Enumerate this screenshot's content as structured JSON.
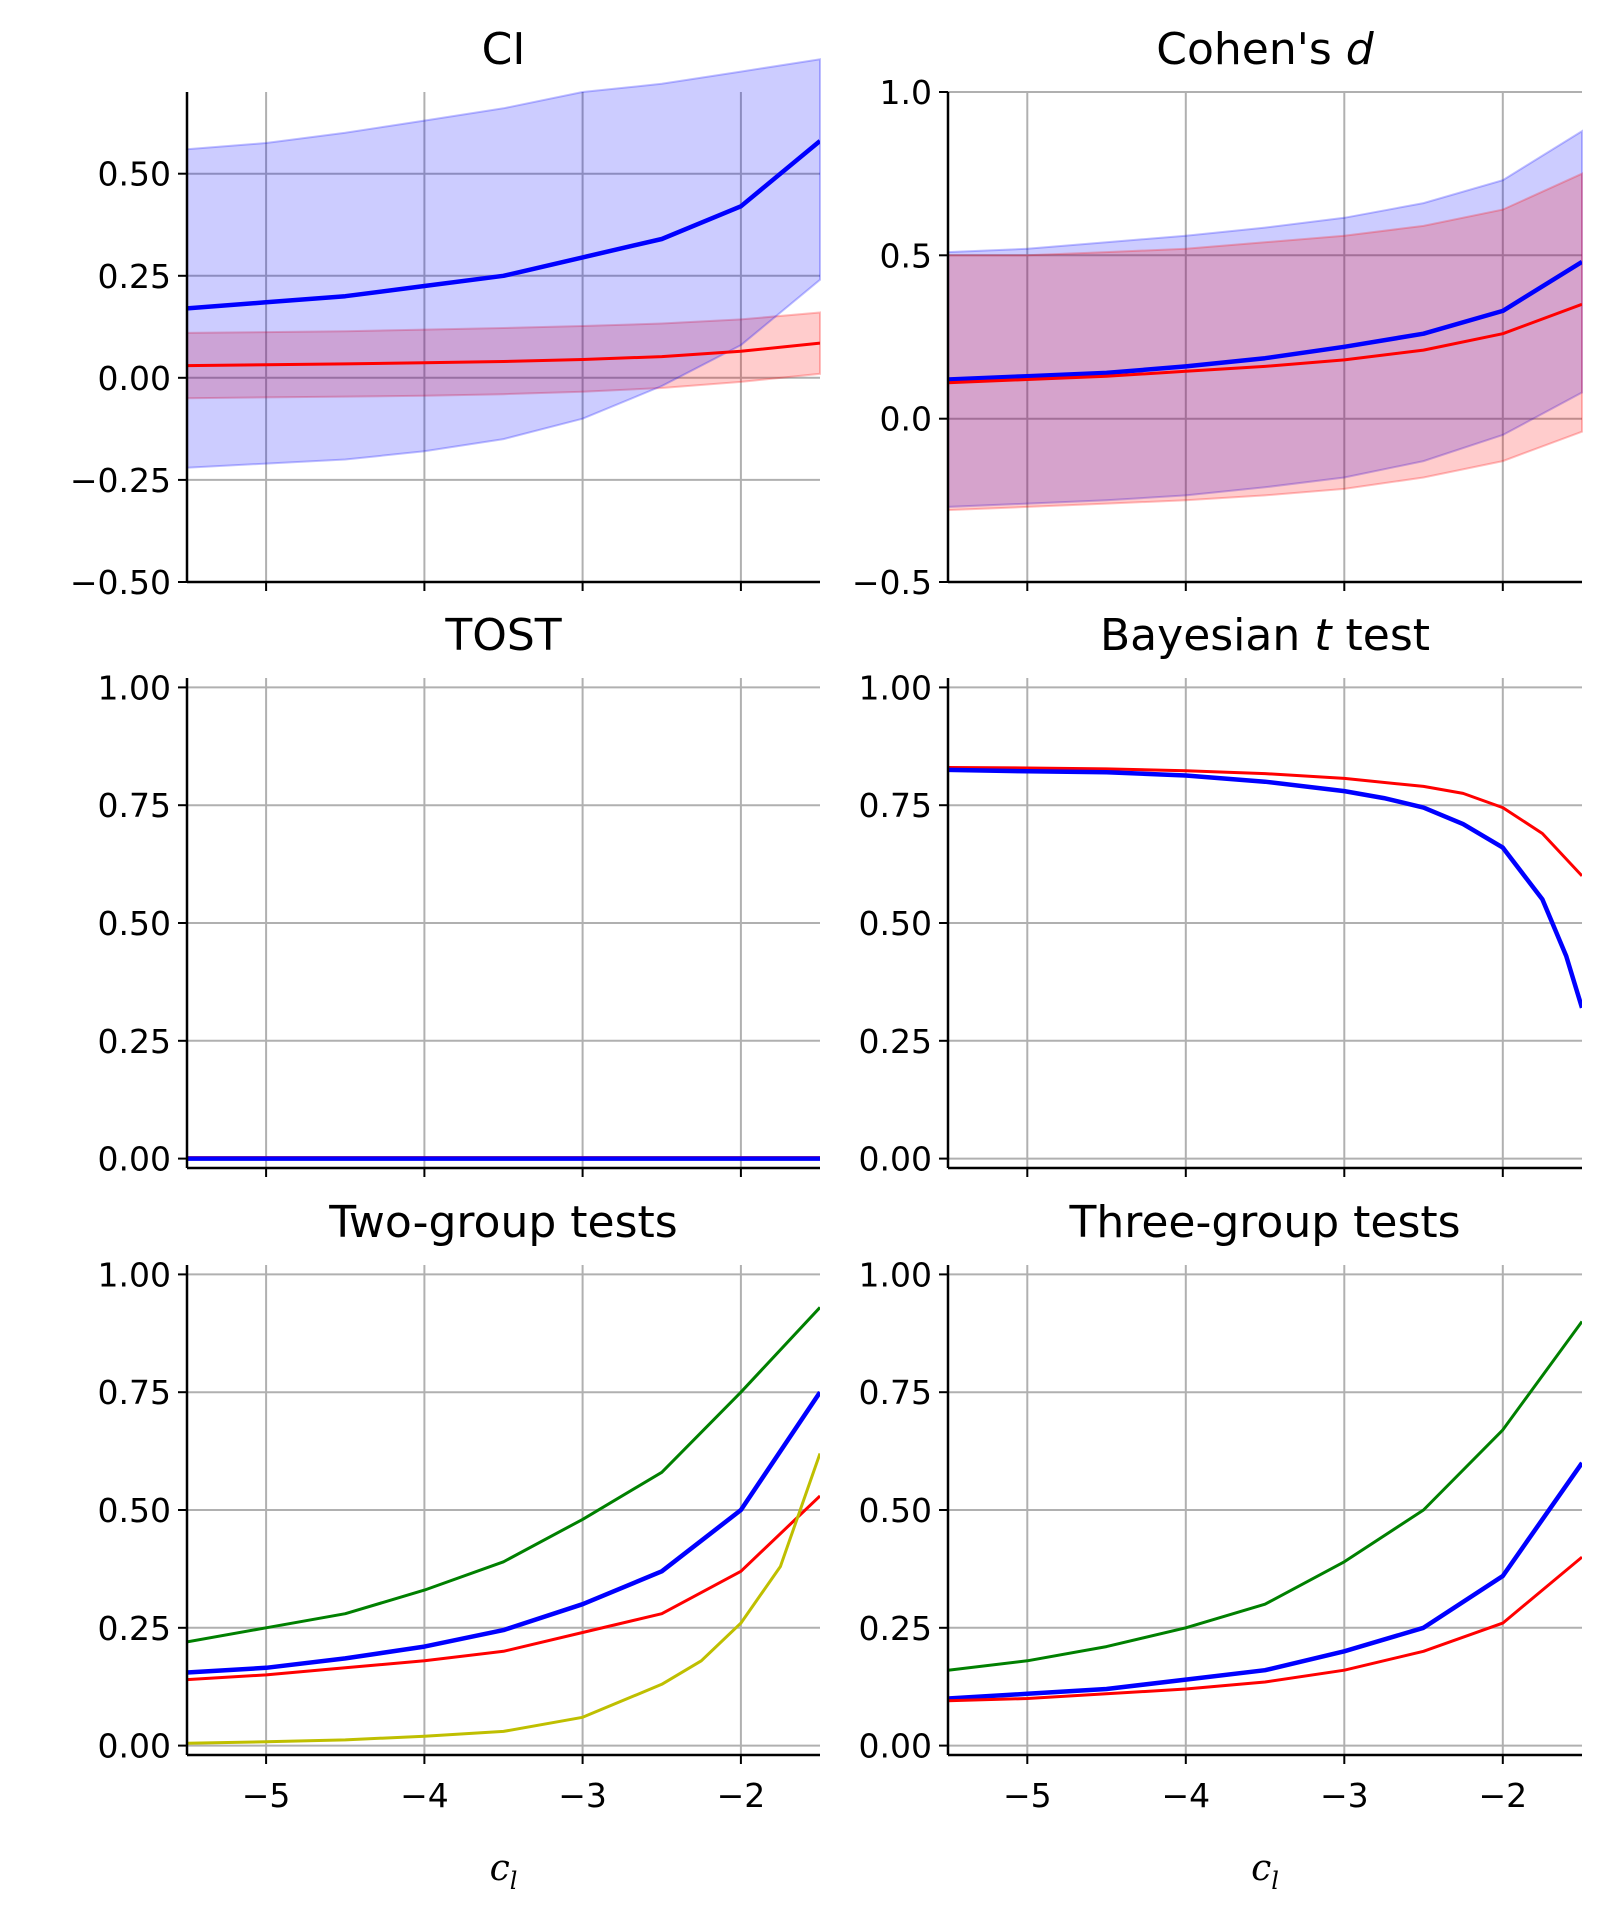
{
  "chart_data": [
    {
      "type": "area",
      "title": "CI",
      "title_italic": "",
      "xlim": [
        -5.5,
        -1.5
      ],
      "ylim": [
        -0.5,
        0.7
      ],
      "yticks": [
        -0.5,
        -0.25,
        0.0,
        0.25,
        0.5
      ],
      "ytick_labels": [
        "−0.50",
        "−0.25",
        "0.00",
        "0.25",
        "0.50"
      ],
      "xticks": [
        -5,
        -4,
        -3,
        -2
      ],
      "xtick_labels": [],
      "xlabel": "",
      "grid": true,
      "series": [
        {
          "color": "#ff0000",
          "x": [
            -5.5,
            -5.0,
            -4.5,
            -4.0,
            -3.5,
            -3.0,
            -2.5,
            -2.0,
            -1.5
          ],
          "values": [
            0.03,
            0.032,
            0.034,
            0.037,
            0.04,
            0.045,
            0.052,
            0.065,
            0.085
          ],
          "lower": [
            -0.05,
            -0.048,
            -0.046,
            -0.044,
            -0.04,
            -0.034,
            -0.025,
            -0.01,
            0.01
          ],
          "upper": [
            0.11,
            0.112,
            0.114,
            0.118,
            0.122,
            0.127,
            0.133,
            0.143,
            0.16
          ]
        },
        {
          "color": "#0000ff",
          "x": [
            -5.5,
            -5.0,
            -4.5,
            -4.0,
            -3.5,
            -3.0,
            -2.5,
            -2.0,
            -1.5
          ],
          "values": [
            0.17,
            0.185,
            0.2,
            0.225,
            0.25,
            0.295,
            0.34,
            0.42,
            0.58
          ],
          "lower": [
            -0.22,
            -0.21,
            -0.2,
            -0.18,
            -0.15,
            -0.1,
            -0.02,
            0.08,
            0.24
          ],
          "upper": [
            0.56,
            0.575,
            0.6,
            0.63,
            0.66,
            0.7,
            0.72,
            0.75,
            0.78
          ]
        }
      ]
    },
    {
      "type": "area",
      "title": "Cohen's ",
      "title_italic": "d",
      "xlim": [
        -5.5,
        -1.5
      ],
      "ylim": [
        -0.5,
        1.0
      ],
      "yticks": [
        -0.5,
        0.0,
        0.5,
        1.0
      ],
      "ytick_labels": [
        "−0.5",
        "0.0",
        "0.5",
        "1.0"
      ],
      "xticks": [
        -5,
        -4,
        -3,
        -2
      ],
      "xtick_labels": [],
      "xlabel": "",
      "grid": true,
      "series": [
        {
          "color": "#0000ff",
          "x": [
            -5.5,
            -5.0,
            -4.5,
            -4.0,
            -3.5,
            -3.0,
            -2.5,
            -2.0,
            -1.5
          ],
          "values": [
            0.12,
            0.13,
            0.14,
            0.16,
            0.185,
            0.22,
            0.26,
            0.33,
            0.48
          ],
          "lower": [
            -0.27,
            -0.26,
            -0.25,
            -0.235,
            -0.21,
            -0.18,
            -0.13,
            -0.05,
            0.08
          ],
          "upper": [
            0.51,
            0.52,
            0.54,
            0.56,
            0.585,
            0.615,
            0.66,
            0.73,
            0.88
          ]
        },
        {
          "color": "#ff0000",
          "x": [
            -5.5,
            -5.0,
            -4.5,
            -4.0,
            -3.5,
            -3.0,
            -2.5,
            -2.0,
            -1.5
          ],
          "values": [
            0.11,
            0.12,
            0.13,
            0.145,
            0.16,
            0.18,
            0.21,
            0.26,
            0.35
          ],
          "lower": [
            -0.28,
            -0.27,
            -0.26,
            -0.25,
            -0.235,
            -0.215,
            -0.18,
            -0.13,
            -0.04
          ],
          "upper": [
            0.5,
            0.5,
            0.51,
            0.52,
            0.54,
            0.56,
            0.59,
            0.64,
            0.75
          ]
        }
      ]
    },
    {
      "type": "line",
      "title": "TOST",
      "title_italic": "",
      "xlim": [
        -5.5,
        -1.5
      ],
      "ylim": [
        -0.02,
        1.02
      ],
      "yticks": [
        0.0,
        0.25,
        0.5,
        0.75,
        1.0
      ],
      "ytick_labels": [
        "0.00",
        "0.25",
        "0.50",
        "0.75",
        "1.00"
      ],
      "xticks": [
        -5,
        -4,
        -3,
        -2
      ],
      "xtick_labels": [],
      "xlabel": "",
      "grid": true,
      "series": [
        {
          "color": "#ff0000",
          "x": [
            -5.5,
            -1.5
          ],
          "values": [
            0.002,
            0.002
          ]
        },
        {
          "color": "#0000ff",
          "x": [
            -5.5,
            -1.5
          ],
          "values": [
            0.0,
            0.0
          ]
        }
      ]
    },
    {
      "type": "line",
      "title": "Bayesian ",
      "title_italic": "t",
      "title_suffix": " test",
      "xlim": [
        -5.5,
        -1.5
      ],
      "ylim": [
        -0.02,
        1.02
      ],
      "yticks": [
        0.0,
        0.25,
        0.5,
        0.75,
        1.0
      ],
      "ytick_labels": [
        "0.00",
        "0.25",
        "0.50",
        "0.75",
        "1.00"
      ],
      "xticks": [
        -5,
        -4,
        -3,
        -2
      ],
      "xtick_labels": [],
      "xlabel": "",
      "grid": true,
      "series": [
        {
          "color": "#ff0000",
          "x": [
            -5.5,
            -5.0,
            -4.5,
            -4.0,
            -3.5,
            -3.0,
            -2.5,
            -2.25,
            -2.0,
            -1.75,
            -1.5
          ],
          "values": [
            0.83,
            0.829,
            0.827,
            0.823,
            0.817,
            0.807,
            0.79,
            0.775,
            0.745,
            0.69,
            0.6
          ]
        },
        {
          "color": "#0000ff",
          "x": [
            -5.5,
            -5.0,
            -4.5,
            -4.0,
            -3.5,
            -3.0,
            -2.75,
            -2.5,
            -2.25,
            -2.0,
            -1.75,
            -1.6,
            -1.5
          ],
          "values": [
            0.825,
            0.822,
            0.82,
            0.813,
            0.8,
            0.78,
            0.765,
            0.745,
            0.71,
            0.66,
            0.55,
            0.43,
            0.32
          ]
        }
      ]
    },
    {
      "type": "line",
      "title": "Two-group tests",
      "title_italic": "",
      "xlim": [
        -5.5,
        -1.5
      ],
      "ylim": [
        -0.02,
        1.02
      ],
      "yticks": [
        0.0,
        0.25,
        0.5,
        0.75,
        1.0
      ],
      "ytick_labels": [
        "0.00",
        "0.25",
        "0.50",
        "0.75",
        "1.00"
      ],
      "xticks": [
        -5,
        -4,
        -3,
        -2
      ],
      "xtick_labels": [
        "−5",
        "−4",
        "−3",
        "−2"
      ],
      "xlabel": "c",
      "xlabel_sub": "l",
      "grid": true,
      "series": [
        {
          "color": "#008000",
          "x": [
            -5.5,
            -5.0,
            -4.5,
            -4.0,
            -3.5,
            -3.0,
            -2.5,
            -2.0,
            -1.5
          ],
          "values": [
            0.22,
            0.25,
            0.28,
            0.33,
            0.39,
            0.48,
            0.58,
            0.75,
            0.93
          ]
        },
        {
          "color": "#0000ff",
          "x": [
            -5.5,
            -5.0,
            -4.5,
            -4.0,
            -3.5,
            -3.0,
            -2.5,
            -2.0,
            -1.5
          ],
          "values": [
            0.155,
            0.165,
            0.185,
            0.21,
            0.245,
            0.3,
            0.37,
            0.5,
            0.75
          ]
        },
        {
          "color": "#ff0000",
          "x": [
            -5.5,
            -5.0,
            -4.5,
            -4.0,
            -3.5,
            -3.0,
            -2.5,
            -2.0,
            -1.5
          ],
          "values": [
            0.14,
            0.15,
            0.165,
            0.18,
            0.2,
            0.24,
            0.28,
            0.37,
            0.53
          ]
        },
        {
          "color": "#bfbf00",
          "x": [
            -5.5,
            -5.0,
            -4.5,
            -4.0,
            -3.5,
            -3.0,
            -2.5,
            -2.25,
            -2.0,
            -1.75,
            -1.5
          ],
          "values": [
            0.005,
            0.008,
            0.012,
            0.02,
            0.03,
            0.06,
            0.13,
            0.18,
            0.26,
            0.38,
            0.62
          ]
        }
      ]
    },
    {
      "type": "line",
      "title": "Three-group tests",
      "title_italic": "",
      "xlim": [
        -5.5,
        -1.5
      ],
      "ylim": [
        -0.02,
        1.02
      ],
      "yticks": [
        0.0,
        0.25,
        0.5,
        0.75,
        1.0
      ],
      "ytick_labels": [
        "0.00",
        "0.25",
        "0.50",
        "0.75",
        "1.00"
      ],
      "xticks": [
        -5,
        -4,
        -3,
        -2
      ],
      "xtick_labels": [
        "−5",
        "−4",
        "−3",
        "−2"
      ],
      "xlabel": "c",
      "xlabel_sub": "l",
      "grid": true,
      "series": [
        {
          "color": "#008000",
          "x": [
            -5.5,
            -5.0,
            -4.5,
            -4.0,
            -3.5,
            -3.0,
            -2.5,
            -2.0,
            -1.5
          ],
          "values": [
            0.16,
            0.18,
            0.21,
            0.25,
            0.3,
            0.39,
            0.5,
            0.67,
            0.9
          ]
        },
        {
          "color": "#0000ff",
          "x": [
            -5.5,
            -5.0,
            -4.5,
            -4.0,
            -3.5,
            -3.0,
            -2.5,
            -2.0,
            -1.5
          ],
          "values": [
            0.1,
            0.11,
            0.12,
            0.14,
            0.16,
            0.2,
            0.25,
            0.36,
            0.6
          ]
        },
        {
          "color": "#ff0000",
          "x": [
            -5.5,
            -5.0,
            -4.5,
            -4.0,
            -3.5,
            -3.0,
            -2.5,
            -2.0,
            -1.5
          ],
          "values": [
            0.095,
            0.1,
            0.11,
            0.12,
            0.135,
            0.16,
            0.2,
            0.26,
            0.4
          ]
        }
      ]
    }
  ]
}
